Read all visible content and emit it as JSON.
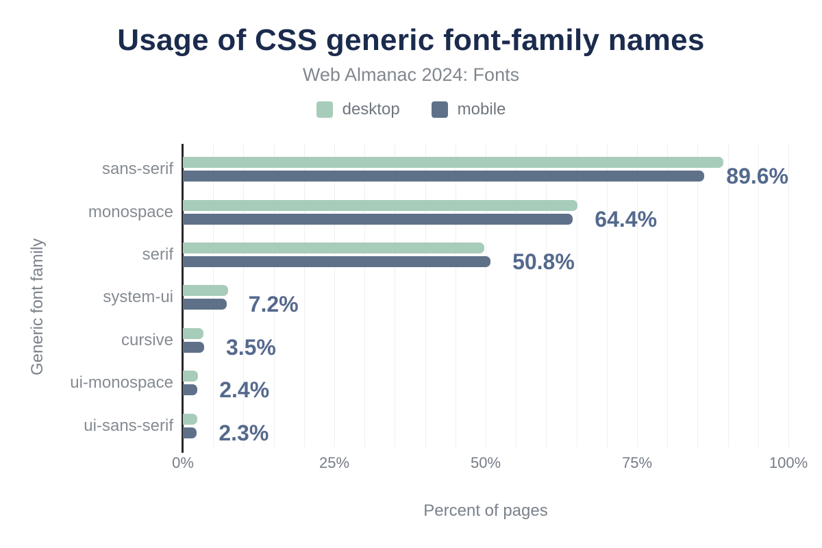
{
  "header": {
    "title": "Usage of CSS generic font-family names",
    "subtitle": "Web Almanac 2024: Fonts"
  },
  "legend": {
    "items": [
      {
        "label": "desktop",
        "color": "#a8ccba"
      },
      {
        "label": "mobile",
        "color": "#5f7189"
      }
    ]
  },
  "chart_data": {
    "type": "bar",
    "orientation": "horizontal",
    "title": "Usage of CSS generic font-family names",
    "subtitle": "Web Almanac 2024: Fonts",
    "xlabel": "Percent of pages",
    "ylabel": "Generic font family",
    "xlim": [
      0,
      100
    ],
    "x_ticks": [
      {
        "label": "0%",
        "value": 0
      },
      {
        "label": "25%",
        "value": 25
      },
      {
        "label": "50%",
        "value": 50
      },
      {
        "label": "75%",
        "value": 75
      },
      {
        "label": "100%",
        "value": 100
      }
    ],
    "grid": true,
    "grid_step_percent": 5,
    "legend_position": "top",
    "categories": [
      "sans-serif",
      "monospace",
      "serif",
      "system-ui",
      "cursive",
      "ui-monospace",
      "ui-sans-serif"
    ],
    "series": [
      {
        "name": "desktop",
        "color": "#a8ccba",
        "values": [
          89.3,
          65.2,
          49.8,
          7.5,
          3.4,
          2.5,
          2.4
        ]
      },
      {
        "name": "mobile",
        "color": "#5f7189",
        "values": [
          89.6,
          64.4,
          50.8,
          7.2,
          3.5,
          2.4,
          2.3
        ]
      }
    ],
    "value_labels": {
      "labeled_series": "mobile",
      "labels": [
        "89.6%",
        "64.4%",
        "50.8%",
        "7.2%",
        "3.5%",
        "2.4%",
        "2.3%"
      ]
    },
    "colors": {
      "title": "#1b2b4d",
      "subtitle": "#81878f",
      "legend_label": "#6f7680",
      "category_label": "#858b93",
      "tick_label": "#757c86",
      "axis_title": "#7a818b",
      "value_label": "#54698c",
      "axis_line": "#26262a",
      "gridline": "#efefef",
      "background": "#ffffff"
    }
  }
}
